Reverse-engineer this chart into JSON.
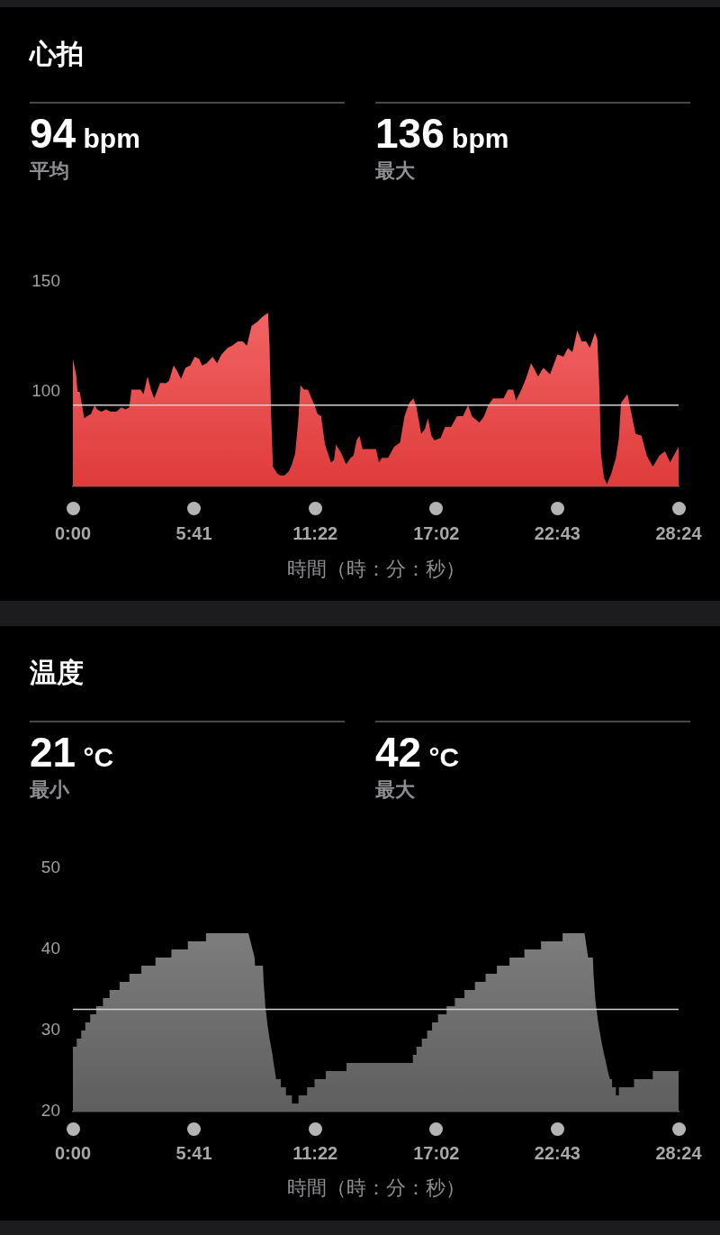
{
  "chart_data": [
    {
      "type": "area",
      "title": "心拍",
      "annotations": [
        "94 bpm",
        "平均",
        "136 bpm",
        "最大"
      ],
      "xlabel": "時間（時：分：秒）",
      "x": [
        0.0,
        0.15,
        0.22,
        0.32,
        0.53,
        0.67,
        0.85,
        1.02,
        1.13,
        1.34,
        1.55,
        1.77,
        2.05,
        2.26,
        2.47,
        2.64,
        2.75,
        2.96,
        3.17,
        3.31,
        3.5,
        3.66,
        3.81,
        4.09,
        4.37,
        4.51,
        4.72,
        4.86,
        5.07,
        5.28,
        5.5,
        5.71,
        5.92,
        6.06,
        6.27,
        6.55,
        6.76,
        6.97,
        7.25,
        7.46,
        7.74,
        7.96,
        8.16,
        8.38,
        8.66,
        8.87,
        9.01,
        9.15,
        9.22,
        9.29,
        9.38,
        9.57,
        9.71,
        9.92,
        10.13,
        10.27,
        10.42,
        10.56,
        10.67,
        10.84,
        11.02,
        11.19,
        11.33,
        11.47,
        11.64,
        11.82,
        12.1,
        12.24,
        12.34,
        12.59,
        12.81,
        13.02,
        13.16,
        13.3,
        13.44,
        13.58,
        13.79,
        14.0,
        14.21,
        14.35,
        14.49,
        14.78,
        15.06,
        15.34,
        15.55,
        15.77,
        15.97,
        16.11,
        16.33,
        16.5,
        16.65,
        16.81,
        16.95,
        17.24,
        17.45,
        17.73,
        18.01,
        18.29,
        18.53,
        18.71,
        19.06,
        19.28,
        19.48,
        19.7,
        19.98,
        20.19,
        20.4,
        20.64,
        20.78,
        21.03,
        21.24,
        21.48,
        21.66,
        21.81,
        22.06,
        22.37,
        22.72,
        23.0,
        23.21,
        23.42,
        23.65,
        23.85,
        24.06,
        24.24,
        24.48,
        24.59,
        24.69,
        24.76,
        24.9,
        25.04,
        25.25,
        25.46,
        25.6,
        25.7,
        26.0,
        26.17,
        26.38,
        26.66,
        26.91,
        27.19,
        27.5,
        27.76,
        28.0,
        28.4
      ],
      "values": [
        115,
        108,
        100,
        100,
        88,
        89,
        90,
        94,
        92,
        91,
        92,
        91,
        91,
        93,
        92,
        93,
        101,
        101,
        101,
        99,
        107,
        101,
        97,
        104,
        104,
        105,
        112,
        110,
        106,
        111,
        112,
        116,
        115,
        112,
        113,
        116,
        113,
        117,
        120,
        121,
        123,
        123,
        121,
        130,
        132,
        134,
        135,
        136,
        121,
        91,
        66,
        63,
        62,
        62,
        64,
        67,
        72,
        86,
        103,
        101,
        101,
        97,
        94,
        90,
        89,
        76,
        68,
        69,
        76,
        72,
        67,
        70,
        71,
        78,
        80,
        74,
        74,
        74,
        74,
        68,
        70,
        70,
        75,
        77,
        89,
        95,
        97,
        93,
        81,
        83,
        88,
        80,
        78,
        79,
        84,
        84,
        89,
        89,
        94,
        89,
        86,
        89,
        94,
        97,
        97,
        97,
        101,
        101,
        96,
        101,
        106,
        113,
        110,
        107,
        111,
        108,
        117,
        116,
        120,
        118,
        128,
        123,
        123,
        120,
        127,
        124,
        101,
        72,
        61,
        58,
        63,
        70,
        79,
        95,
        99,
        91,
        81,
        80,
        71,
        66,
        71,
        73,
        68,
        75
      ],
      "color": "#f24040",
      "xlim": [
        0,
        28.4
      ],
      "xticks": [
        {
          "value": 0,
          "label": "0:00"
        },
        {
          "value": 5.68,
          "label": "5:41"
        },
        {
          "value": 11.36,
          "label": "11:22"
        },
        {
          "value": 17.04,
          "label": "17:02"
        },
        {
          "value": 22.72,
          "label": "22:43"
        },
        {
          "value": 28.4,
          "label": "28:24"
        }
      ],
      "ylim": [
        57,
        150
      ],
      "yticks": [
        100,
        150
      ],
      "ref_lines": [
        {
          "axis": "y",
          "value": 94,
          "color": "#d0d0d0"
        }
      ]
    },
    {
      "type": "area",
      "title": "温度",
      "annotations": [
        "21 °C",
        "最小",
        "42 °C",
        "最大"
      ],
      "xlabel": "時間（時：分：秒）",
      "x": [
        0.0,
        0.18,
        0.18,
        0.39,
        0.39,
        0.58,
        0.58,
        0.81,
        0.81,
        1.09,
        1.09,
        1.41,
        1.41,
        1.72,
        1.72,
        2.19,
        2.19,
        2.65,
        2.65,
        3.21,
        3.21,
        3.87,
        3.87,
        4.62,
        4.62,
        5.39,
        5.39,
        6.24,
        6.24,
        8.23,
        8.52,
        8.54,
        8.91,
        8.94,
        8.97,
        9.0,
        9.02,
        9.07,
        9.11,
        9.16,
        9.22,
        9.29,
        9.36,
        9.41,
        9.47,
        9.53,
        9.75,
        9.75,
        9.99,
        9.99,
        10.27,
        10.27,
        10.58,
        10.58,
        10.98,
        10.98,
        11.33,
        11.33,
        11.86,
        11.86,
        12.83,
        12.83,
        15.94,
        15.94,
        16.11,
        16.11,
        16.36,
        16.36,
        16.61,
        16.61,
        16.84,
        16.84,
        17.12,
        17.12,
        17.52,
        17.52,
        17.91,
        17.91,
        18.36,
        18.36,
        18.85,
        18.85,
        19.35,
        19.35,
        19.88,
        19.88,
        20.47,
        20.47,
        21.17,
        21.17,
        21.95,
        21.95,
        22.96,
        22.96,
        23.99,
        24.16,
        24.38,
        24.41,
        24.44,
        24.46,
        24.49,
        24.53,
        24.58,
        24.63,
        24.69,
        24.76,
        24.83,
        24.91,
        25.0,
        25.08,
        25.18,
        25.28,
        25.28,
        25.46,
        25.46,
        25.6,
        25.6,
        26.31,
        26.31,
        27.19,
        27.19,
        28.4
      ],
      "values": [
        28,
        28,
        29,
        29,
        30,
        30,
        31,
        31,
        32,
        32,
        33,
        33,
        34,
        34,
        35,
        35,
        36,
        36,
        37,
        37,
        38,
        38,
        39,
        39,
        40,
        40,
        41,
        41,
        42,
        42,
        39,
        38,
        38,
        36,
        35,
        34,
        33,
        32,
        31,
        30,
        29,
        28,
        27,
        26,
        25,
        24,
        24,
        23,
        23,
        22,
        22,
        21,
        21,
        22,
        22,
        23,
        23,
        24,
        24,
        25,
        25,
        26,
        26,
        27,
        27,
        28,
        28,
        29,
        29,
        30,
        30,
        31,
        31,
        32,
        32,
        33,
        33,
        34,
        34,
        35,
        35,
        36,
        36,
        37,
        37,
        38,
        38,
        39,
        39,
        40,
        40,
        41,
        41,
        42,
        42,
        39,
        39,
        37,
        36,
        35,
        34,
        33,
        32,
        31,
        30,
        29,
        28,
        27,
        26,
        25,
        24,
        24,
        23,
        23,
        22,
        22,
        23,
        23,
        24,
        24,
        25,
        25
      ],
      "color": "#666666",
      "xlim": [
        0,
        28.4
      ],
      "xticks": [
        {
          "value": 0,
          "label": "0:00"
        },
        {
          "value": 5.68,
          "label": "5:41"
        },
        {
          "value": 11.36,
          "label": "11:22"
        },
        {
          "value": 17.04,
          "label": "17:02"
        },
        {
          "value": 22.72,
          "label": "22:43"
        },
        {
          "value": 28.4,
          "label": "28:24"
        }
      ],
      "ylim": [
        20,
        50
      ],
      "yticks": [
        20,
        30,
        40,
        50
      ],
      "ref_lines": [
        {
          "axis": "y",
          "value": 32.6,
          "color": "#d0d0d0"
        }
      ]
    }
  ]
}
